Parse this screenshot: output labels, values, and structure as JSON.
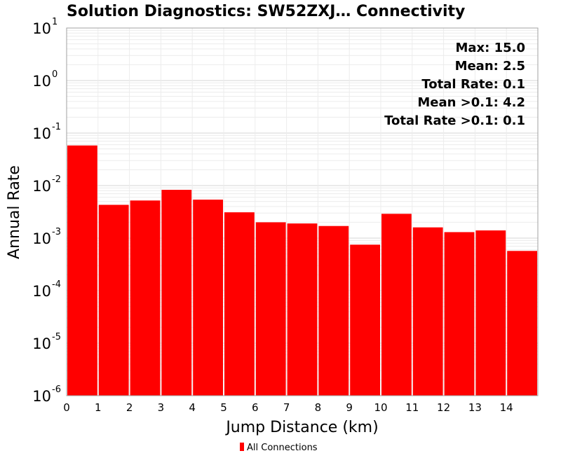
{
  "chart_data": {
    "type": "bar",
    "title": "Solution Diagnostics: SW52ZXJ… Connectivity",
    "xlabel": "Jump Distance (km)",
    "ylabel": "Annual Rate",
    "y_scale": "log",
    "ylim": [
      1e-06,
      10
    ],
    "y_ticks": [
      {
        "base": "10",
        "exp": "1",
        "value": 10
      },
      {
        "base": "10",
        "exp": "0",
        "value": 1
      },
      {
        "base": "10",
        "exp": "-1",
        "value": 0.1
      },
      {
        "base": "10",
        "exp": "-2",
        "value": 0.01
      },
      {
        "base": "10",
        "exp": "-3",
        "value": 0.001
      },
      {
        "base": "10",
        "exp": "-4",
        "value": 0.0001
      },
      {
        "base": "10",
        "exp": "-5",
        "value": 1e-05
      },
      {
        "base": "10",
        "exp": "-6",
        "value": 1e-06
      }
    ],
    "xlim": [
      0,
      15
    ],
    "x_ticks": [
      "0",
      "1",
      "2",
      "3",
      "4",
      "5",
      "6",
      "7",
      "8",
      "9",
      "10",
      "11",
      "12",
      "13",
      "14"
    ],
    "bin_width": 1,
    "bins": [
      {
        "x0": 0,
        "value": 0.058
      },
      {
        "x0": 1,
        "value": 0.0043
      },
      {
        "x0": 2,
        "value": 0.0052
      },
      {
        "x0": 3,
        "value": 0.0083
      },
      {
        "x0": 4,
        "value": 0.0054
      },
      {
        "x0": 5,
        "value": 0.0031
      },
      {
        "x0": 6,
        "value": 0.002
      },
      {
        "x0": 7,
        "value": 0.0019
      },
      {
        "x0": 8,
        "value": 0.0017
      },
      {
        "x0": 9,
        "value": 0.00075
      },
      {
        "x0": 10,
        "value": 0.0029
      },
      {
        "x0": 11,
        "value": 0.0016
      },
      {
        "x0": 12,
        "value": 0.0013
      },
      {
        "x0": 13,
        "value": 0.0014
      },
      {
        "x0": 14,
        "value": 0.00057
      }
    ],
    "series": [
      {
        "name": "All Connections",
        "color": "#ff0000"
      }
    ],
    "annotations": [
      "Max: 15.0",
      "Mean: 2.5",
      "Total Rate: 0.1",
      "Mean >0.1: 4.2",
      "Total Rate >0.1: 0.1"
    ],
    "grid": true,
    "legend": "bottom-center"
  }
}
